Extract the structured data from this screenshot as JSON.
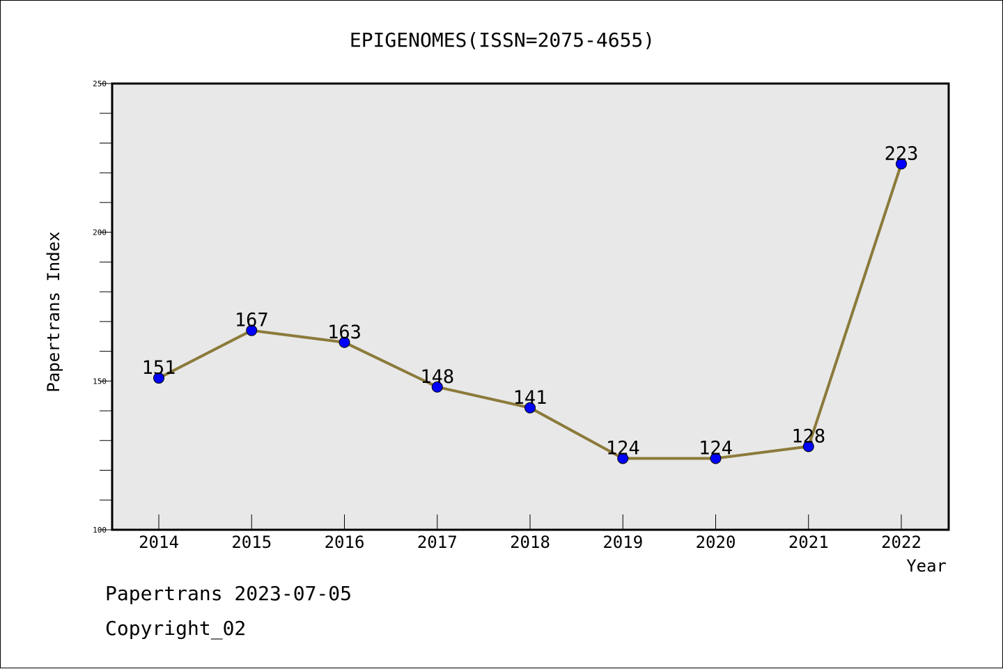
{
  "chart_data": {
    "type": "line",
    "title": "EPIGENOMES(ISSN=2075-4655)",
    "xlabel": "Year",
    "ylabel": "Papertrans Index",
    "categories": [
      "2014",
      "2015",
      "2016",
      "2017",
      "2018",
      "2019",
      "2020",
      "2021",
      "2022"
    ],
    "values": [
      151,
      167,
      163,
      148,
      141,
      124,
      124,
      128,
      223
    ],
    "data_labels": [
      "151",
      "167",
      "163",
      "148",
      "141",
      "124",
      "124",
      "128",
      "223"
    ],
    "ylim": [
      100,
      250
    ],
    "yticks": [
      "100",
      "150",
      "200",
      "250"
    ],
    "grid": false,
    "line_color": "#8B7A3A",
    "marker_color": "#0000FF",
    "plot_background": "#E8E8E8"
  },
  "footer": {
    "line1": "Papertrans 2023-07-05",
    "line2": "Copyright_02"
  }
}
